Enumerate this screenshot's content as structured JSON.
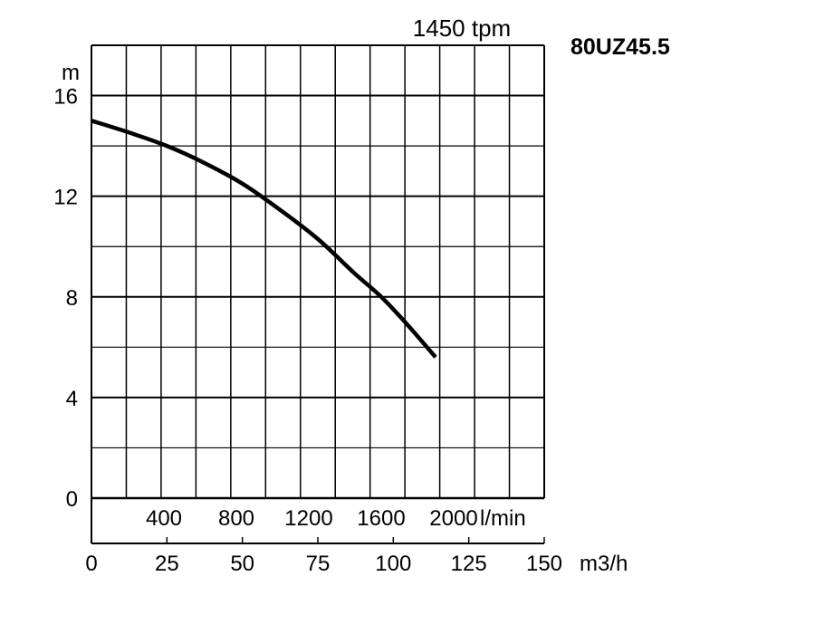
{
  "chart_data": {
    "type": "line",
    "title": "80UZ45.5",
    "subtitle": "1450 tpm",
    "ylabel": "m",
    "ylim": [
      0,
      18
    ],
    "y_ticks": [
      0,
      4,
      8,
      12,
      16
    ],
    "x_primary": {
      "unit": "m3/h",
      "lim": [
        0,
        150
      ],
      "ticks": [
        0,
        25,
        50,
        75,
        100,
        125,
        150
      ]
    },
    "x_secondary": {
      "unit": "l/min",
      "ticks": [
        400,
        800,
        1200,
        1600,
        2000
      ]
    },
    "grid": true,
    "series": [
      {
        "x": [
          0,
          12,
          25,
          37,
          50,
          62,
          75,
          87,
          96,
          105,
          114
        ],
        "values": [
          15.0,
          14.55,
          14.0,
          13.35,
          12.5,
          11.5,
          10.3,
          8.95,
          8.0,
          6.85,
          5.6
        ]
      }
    ]
  }
}
